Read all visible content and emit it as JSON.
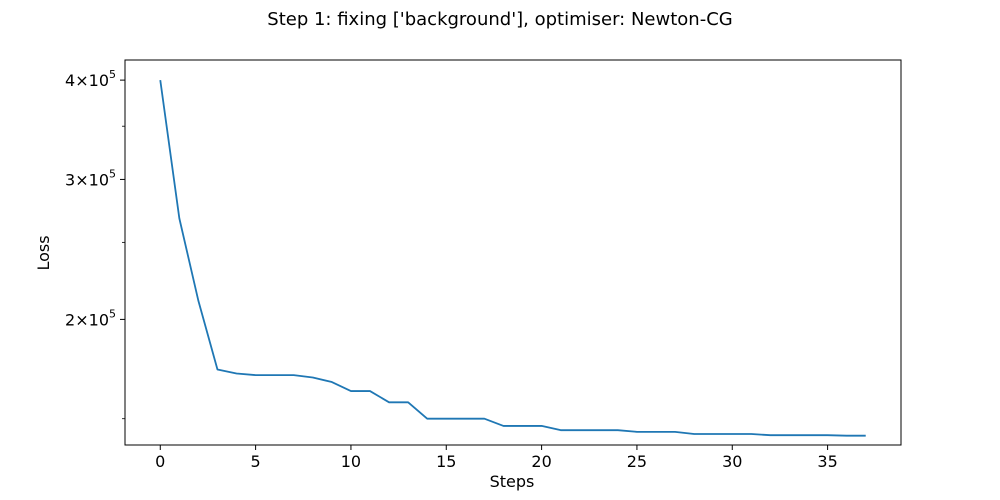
{
  "chart_data": {
    "type": "line",
    "title": "Step 1: fixing ['background'], optimiser: Newton-CG",
    "xlabel": "Steps",
    "ylabel": "Loss",
    "yscale": "log",
    "xlim": [
      -1.85,
      38.85
    ],
    "ylim": [
      139000,
      424000
    ],
    "xticks": [
      0,
      5,
      10,
      15,
      20,
      25,
      30,
      35
    ],
    "xtick_labels": [
      "0",
      "5",
      "10",
      "15",
      "20",
      "25",
      "30",
      "35"
    ],
    "yticks": [
      {
        "value": 200000,
        "mantissa": "2",
        "base": "10",
        "exponent": "5"
      },
      {
        "value": 300000,
        "mantissa": "3",
        "base": "10",
        "exponent": "5"
      },
      {
        "value": 400000,
        "mantissa": "4",
        "base": "10",
        "exponent": "5"
      }
    ],
    "grid": false,
    "color": "#1f77b4",
    "series": [
      {
        "x": [
          0,
          1,
          2,
          3,
          4,
          5,
          6,
          7,
          8,
          9,
          10,
          11,
          12,
          13,
          14,
          15,
          16,
          17,
          18,
          19,
          20,
          21,
          22,
          23,
          24,
          25,
          26,
          27,
          28,
          29,
          30,
          31,
          32,
          33,
          34,
          35,
          36,
          37
        ],
        "values": [
          400000,
          268000,
          211000,
          173000,
          171000,
          170200,
          170200,
          170200,
          169000,
          166800,
          162500,
          162500,
          157300,
          157300,
          150000,
          150000,
          150000,
          150000,
          146900,
          146900,
          146900,
          145100,
          145100,
          145100,
          145100,
          144400,
          144400,
          144400,
          143500,
          143500,
          143500,
          143500,
          143000,
          143000,
          143000,
          143000,
          142800,
          142800
        ]
      }
    ]
  }
}
